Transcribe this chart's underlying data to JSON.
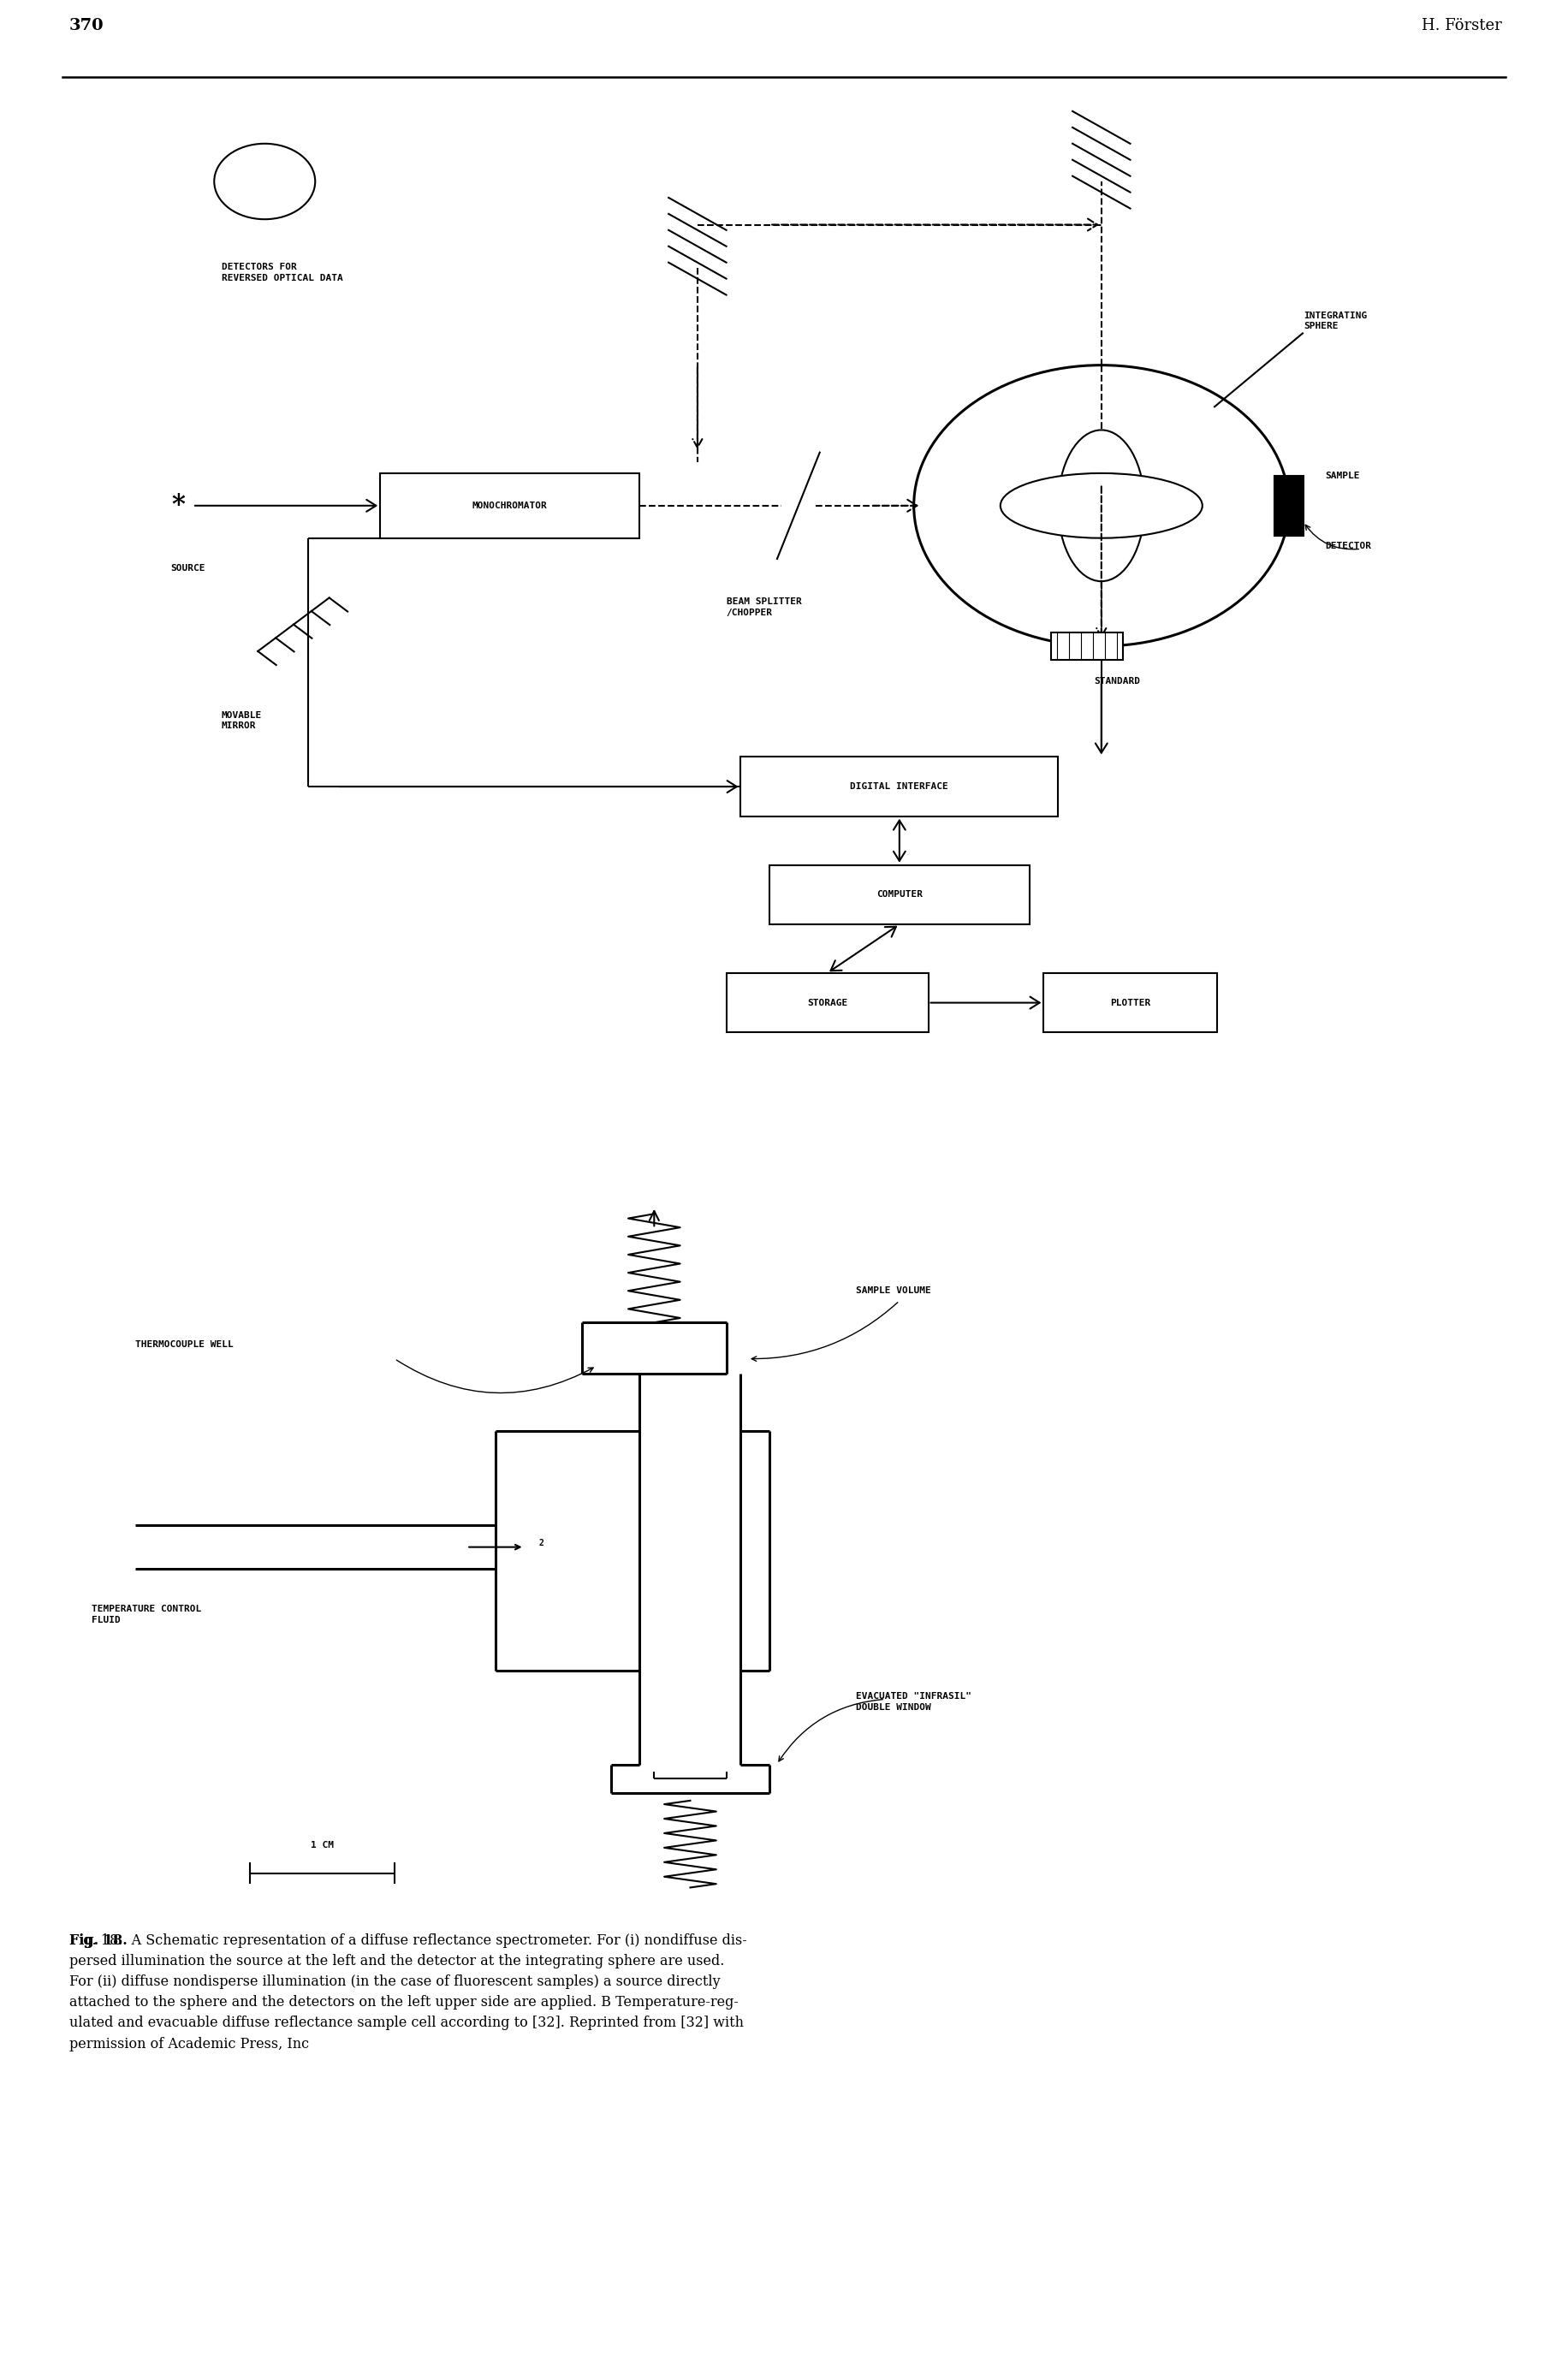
{
  "page_number": "370",
  "page_header": "H. Förster",
  "caption_bold": "Fig. 18.",
  "caption_normal": "  A Schematic representation of a diffuse reflectance spectrometer. For (i) nondiffuse dis-\npersed illumination the source at the left and the detector at the integrating sphere are used.\nFor (ii) diffuse nondisperse illumination (in the case of fluorescent samples) a source directly\nattached to the sphere and the detectors on the left upper side are applied. B Temperature-reg-\nulated and evacuable diffuse reflectance sample cell according to [32]. Reprinted from [32] with\npermission of Academic Press, Inc",
  "background_color": "#ffffff",
  "lw": 1.5,
  "lw2": 2.2,
  "fs": 8.0
}
